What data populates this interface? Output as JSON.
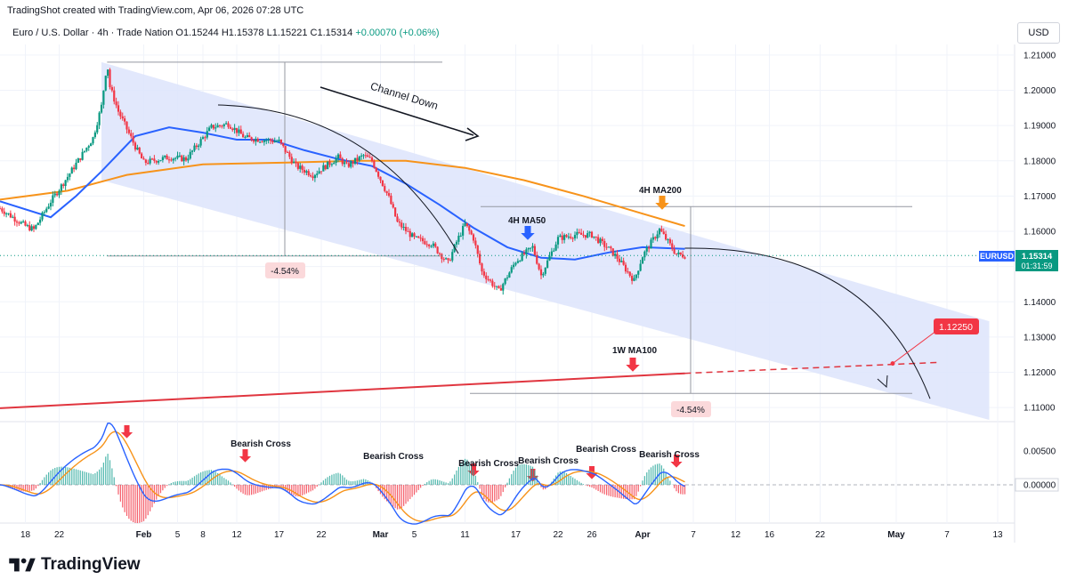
{
  "header": {
    "credit": "TradingShot created with TradingView.com, Apr 06, 2026 07:28 UTC",
    "symbol_line": "Euro / U.S. Dollar · 4h · Trade Nation",
    "open": "O1.15244",
    "high": "H1.15378",
    "low": "L1.15221",
    "close": "C1.15314",
    "change": "+0.00070 (+0.06%)",
    "currency": "USD"
  },
  "price_label": {
    "ticker": "EURUSD",
    "price": "1.15314",
    "countdown": "01:31:59"
  },
  "target_label": "1.12250",
  "annotations": {
    "channel": "Channel Down",
    "ma50": "4H MA50",
    "ma200": "4H MA200",
    "ma100w": "1W MA100",
    "pct_left": "-4.54%",
    "pct_right": "-4.54%",
    "bearish_cross": "Bearish Cross"
  },
  "brand": "TradingView",
  "colors": {
    "up": "#089981",
    "down": "#f23645",
    "ma50": "#2962ff",
    "ma200": "#f7931a",
    "ma100w": "#e0353f",
    "channel_fill": "#dde4fb",
    "macd": "#2962ff",
    "signal": "#f7931a",
    "arrow_red": "#f23645",
    "arrow_blue": "#2962ff",
    "arrow_orange": "#f7931a"
  },
  "chart_data": {
    "type": "candlestick",
    "symbol": "EURUSD",
    "timeframe": "4h",
    "y_axis_ticks": [
      "1.21000",
      "1.20000",
      "1.19000",
      "1.18000",
      "1.17000",
      "1.16000",
      "1.15000",
      "1.14000",
      "1.13000",
      "1.12000",
      "1.11000"
    ],
    "ylim": [
      1.106,
      1.213
    ],
    "x_axis_ticks": [
      "18",
      "22",
      "Feb",
      "5",
      "8",
      "12",
      "17",
      "22",
      "Mar",
      "5",
      "11",
      "17",
      "22",
      "26",
      "Apr",
      "7",
      "12",
      "16",
      "22",
      "May",
      "7",
      "13"
    ],
    "x_range_days": [
      "2026-01-15",
      "2026-05-15"
    ],
    "price_path": [
      [
        "2026-01-15",
        1.1665
      ],
      [
        "2026-01-18",
        1.1615
      ],
      [
        "2026-01-19",
        1.1605
      ],
      [
        "2026-01-21",
        1.1685
      ],
      [
        "2026-01-23",
        1.1755
      ],
      [
        "2026-01-26",
        1.1865
      ],
      [
        "2026-01-27",
        1.1955
      ],
      [
        "2026-01-27 16:00",
        1.208
      ],
      [
        "2026-01-28",
        1.201
      ],
      [
        "2026-01-29",
        1.194
      ],
      [
        "2026-01-31",
        1.184
      ],
      [
        "2026-02-01",
        1.1795
      ],
      [
        "2026-02-04",
        1.181
      ],
      [
        "2026-02-06",
        1.1805
      ],
      [
        "2026-02-09",
        1.1895
      ],
      [
        "2026-02-11",
        1.1905
      ],
      [
        "2026-02-13",
        1.1865
      ],
      [
        "2026-02-17",
        1.1855
      ],
      [
        "2026-02-19",
        1.1785
      ],
      [
        "2026-02-21",
        1.176
      ],
      [
        "2026-02-24",
        1.181
      ],
      [
        "2026-02-25",
        1.1785
      ],
      [
        "2026-02-27",
        1.1815
      ],
      [
        "2026-02-28",
        1.18
      ],
      [
        "2026-03-02",
        1.1695
      ],
      [
        "2026-03-03",
        1.1625
      ],
      [
        "2026-03-05",
        1.158
      ],
      [
        "2026-03-07",
        1.1565
      ],
      [
        "2026-03-09",
        1.151
      ],
      [
        "2026-03-10",
        1.157
      ],
      [
        "2026-03-11",
        1.162
      ],
      [
        "2026-03-12",
        1.158
      ],
      [
        "2026-03-13",
        1.1485
      ],
      [
        "2026-03-15",
        1.143
      ],
      [
        "2026-03-17",
        1.1515
      ],
      [
        "2026-03-19",
        1.1555
      ],
      [
        "2026-03-20",
        1.1475
      ],
      [
        "2026-03-22",
        1.158
      ],
      [
        "2026-03-24",
        1.159
      ],
      [
        "2026-03-26",
        1.159
      ],
      [
        "2026-03-28",
        1.155
      ],
      [
        "2026-03-29",
        1.1525
      ],
      [
        "2026-03-31",
        1.146
      ],
      [
        "2026-04-01",
        1.153
      ],
      [
        "2026-04-03",
        1.1605
      ],
      [
        "2026-04-05",
        1.1535
      ],
      [
        "2026-04-06",
        1.1531
      ]
    ],
    "ma50_4h": [
      [
        "2026-01-15",
        1.1685
      ],
      [
        "2026-01-21",
        1.164
      ],
      [
        "2026-01-24",
        1.17
      ],
      [
        "2026-01-27",
        1.177
      ],
      [
        "2026-01-31",
        1.187
      ],
      [
        "2026-02-04",
        1.1895
      ],
      [
        "2026-02-08",
        1.188
      ],
      [
        "2026-02-12",
        1.186
      ],
      [
        "2026-02-16",
        1.186
      ],
      [
        "2026-02-20",
        1.183
      ],
      [
        "2026-02-24",
        1.1805
      ],
      [
        "2026-02-28",
        1.1785
      ],
      [
        "2026-03-04",
        1.1735
      ],
      [
        "2026-03-08",
        1.1675
      ],
      [
        "2026-03-12",
        1.161
      ],
      [
        "2026-03-16",
        1.1555
      ],
      [
        "2026-03-20",
        1.1525
      ],
      [
        "2026-03-24",
        1.152
      ],
      [
        "2026-03-28",
        1.154
      ],
      [
        "2026-04-01",
        1.1555
      ],
      [
        "2026-04-06",
        1.155
      ]
    ],
    "ma200_4h": [
      [
        "2026-01-15",
        1.169
      ],
      [
        "2026-01-23",
        1.1715
      ],
      [
        "2026-01-30",
        1.176
      ],
      [
        "2026-02-08",
        1.179
      ],
      [
        "2026-02-18",
        1.1795
      ],
      [
        "2026-02-26",
        1.18
      ],
      [
        "2026-03-04",
        1.18
      ],
      [
        "2026-03-11",
        1.178
      ],
      [
        "2026-03-18",
        1.1745
      ],
      [
        "2026-03-25",
        1.17
      ],
      [
        "2026-04-01",
        1.165
      ],
      [
        "2026-04-06",
        1.1615
      ]
    ],
    "ma100_1w": [
      [
        "2026-01-15",
        1.1098
      ],
      [
        "2026-04-06",
        1.1197
      ]
    ],
    "ma100_1w_projection": [
      [
        "2026-04-06",
        1.1197
      ],
      [
        "2026-05-06",
        1.1228
      ]
    ],
    "projected_path": [
      [
        "2026-04-06",
        1.1552
      ],
      [
        "2026-04-20",
        1.1455
      ],
      [
        "2026-05-01",
        1.128
      ],
      [
        "2026-05-05",
        1.1125
      ]
    ],
    "channel": {
      "upper": [
        [
          "2026-01-27",
          1.208
        ],
        [
          "2026-05-12",
          1.1345
        ]
      ],
      "lower": [
        [
          "2026-01-27",
          1.1745
        ],
        [
          "2026-05-12",
          1.1065
        ]
      ]
    },
    "drop_1": {
      "from": 1.208,
      "to": 1.153,
      "percent": "-4.54%"
    },
    "drop_2": {
      "from": 1.167,
      "to": 1.114,
      "percent": "-4.54%"
    },
    "target": 1.1225,
    "macd": {
      "zero_label": "0.00000",
      "ticks": [
        "0.00500",
        "0.00000"
      ],
      "bearish_crosses": [
        "2026-01-30",
        "2026-02-13",
        "2026-03-12",
        "2026-03-19",
        "2026-03-26",
        "2026-04-05"
      ]
    }
  }
}
